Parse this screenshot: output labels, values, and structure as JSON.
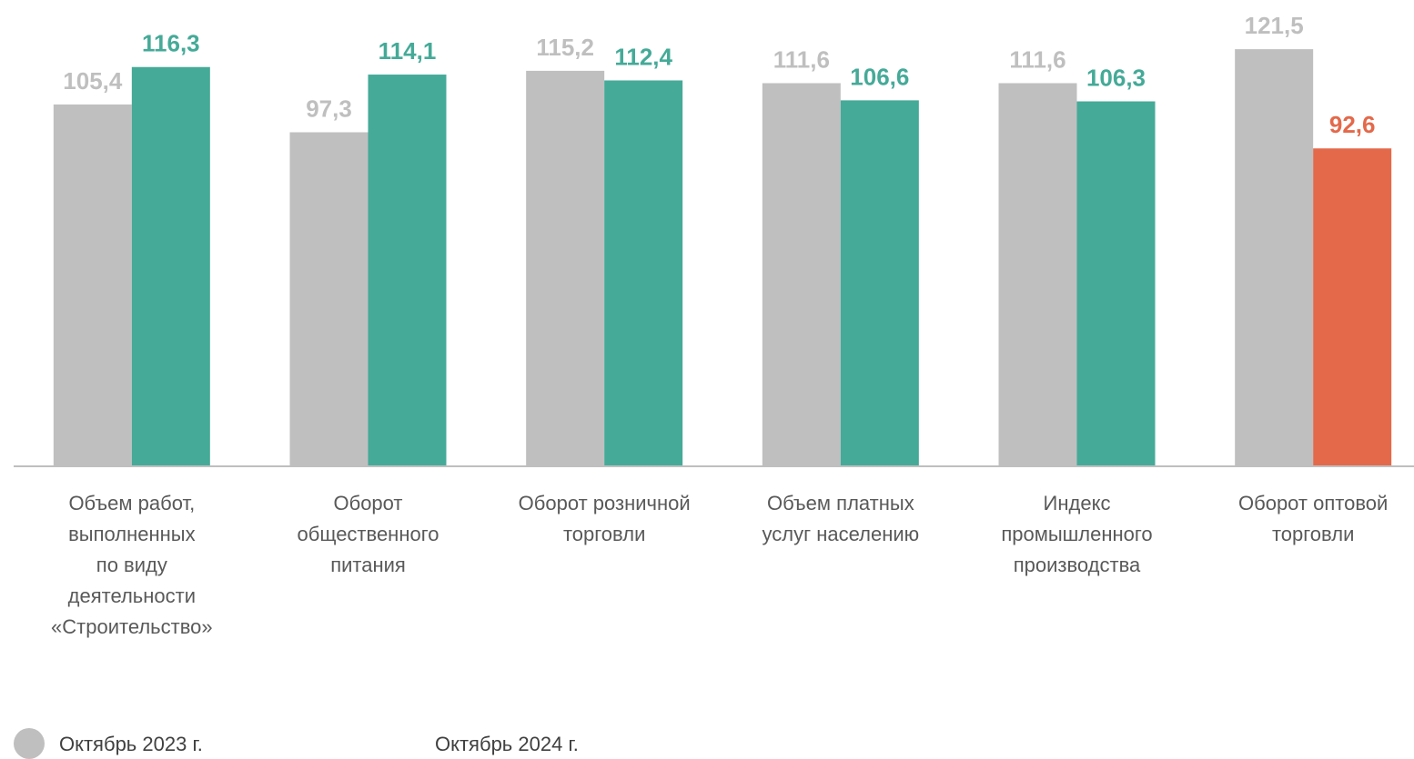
{
  "chart_data": {
    "type": "bar",
    "categories": [
      [
        "Объем работ,",
        "выполненных",
        "по виду",
        "деятельности",
        "«Строительство»"
      ],
      [
        "Оборот",
        "общественного",
        "питания"
      ],
      [
        "Оборот розничной",
        "торговли"
      ],
      [
        "Объем платных",
        "услуг населению"
      ],
      [
        "Индекс",
        "промышленного",
        "производства"
      ],
      [
        "Оборот оптовой",
        "торговли"
      ]
    ],
    "series": [
      {
        "name": "Октябрь 2023 г.",
        "color": "#bfbfbf",
        "values": [
          105.4,
          97.3,
          115.2,
          111.6,
          111.6,
          121.5
        ],
        "value_labels": [
          "105,4",
          "97,3",
          "115,2",
          "111,6",
          "111,6",
          "121,5"
        ]
      },
      {
        "name": "Октябрь 2024 г.",
        "color": "#45aa98",
        "colors": [
          "#45aa98",
          "#45aa98",
          "#45aa98",
          "#45aa98",
          "#45aa98",
          "#e3694a"
        ],
        "values": [
          116.3,
          114.1,
          112.4,
          106.6,
          106.3,
          92.6
        ],
        "value_labels": [
          "116,3",
          "114,1",
          "112,4",
          "106,6",
          "106,3",
          "92,6"
        ]
      }
    ],
    "ylim": [
      0,
      130
    ]
  }
}
